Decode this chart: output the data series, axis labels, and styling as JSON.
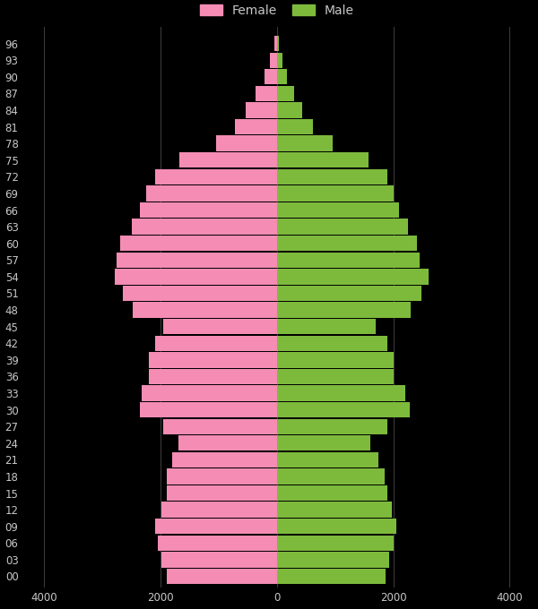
{
  "ages": [
    0,
    3,
    6,
    9,
    12,
    15,
    18,
    21,
    24,
    27,
    30,
    33,
    36,
    39,
    42,
    45,
    48,
    51,
    54,
    57,
    60,
    63,
    66,
    69,
    72,
    75,
    78,
    81,
    84,
    87,
    90,
    93,
    96
  ],
  "female": [
    1900,
    1980,
    2050,
    2100,
    1980,
    1900,
    1900,
    1800,
    1700,
    1950,
    2350,
    2320,
    2200,
    2200,
    2100,
    1950,
    2480,
    2650,
    2780,
    2750,
    2700,
    2500,
    2350,
    2250,
    2100,
    1680,
    1050,
    720,
    530,
    370,
    220,
    120,
    50
  ],
  "male": [
    1870,
    1930,
    2000,
    2050,
    1980,
    1900,
    1850,
    1750,
    1600,
    1900,
    2280,
    2200,
    2000,
    2000,
    1900,
    1700,
    2300,
    2480,
    2600,
    2450,
    2400,
    2250,
    2100,
    2000,
    1900,
    1580,
    950,
    620,
    440,
    290,
    170,
    90,
    30
  ],
  "female_color": "#f48cb4",
  "male_color": "#7dba3c",
  "bg_color": "#000000",
  "text_color": "#c8c8c8",
  "grid_color": "#484848",
  "xlim": [
    -4400,
    4400
  ],
  "xticks": [
    -4000,
    -2000,
    0,
    2000,
    4000
  ],
  "bar_height": 2.8,
  "figsize": [
    6.0,
    6.8
  ],
  "dpi": 100,
  "ylim": [
    -2,
    99
  ],
  "legend_fontsize": 10,
  "tick_fontsize": 8.5
}
